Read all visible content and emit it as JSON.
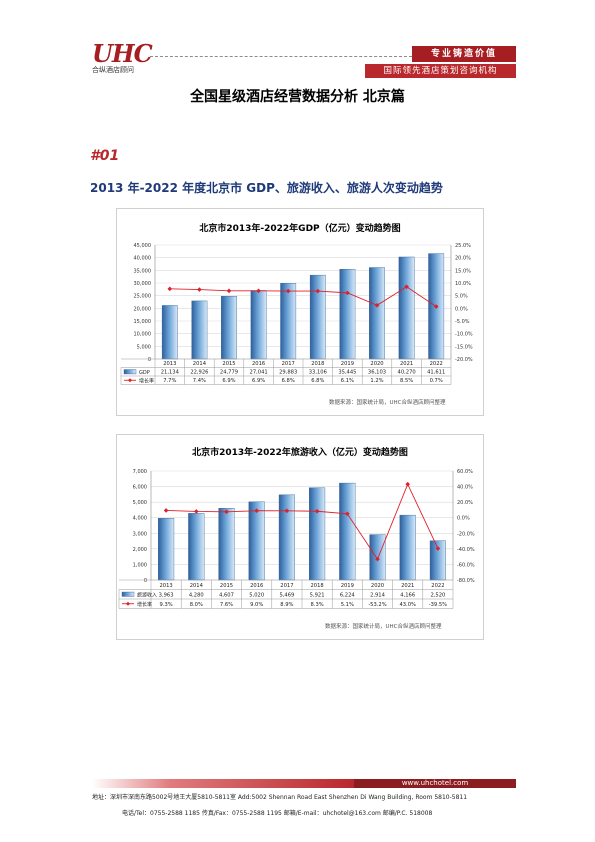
{
  "header": {
    "logo_text": "UHC",
    "logo_sub": "合纵酒店顾问",
    "slogan": "专业铸造价值",
    "tagline": "国际领先酒店策划咨询机构"
  },
  "doc_title": "全国星级酒店经营数据分析 北京篇",
  "section": {
    "number": "#01",
    "title": "2013 年-2022 年度北京市 GDP、旅游收入、旅游人次变动趋势"
  },
  "chart_data": [
    {
      "type": "bar",
      "title": "北京市2013年-2022年GDP（亿元）变动趋势图",
      "categories": [
        "2013",
        "2014",
        "2015",
        "2016",
        "2017",
        "2018",
        "2019",
        "2020",
        "2021",
        "2022"
      ],
      "series": [
        {
          "name": "GDP",
          "kind": "bar",
          "axis": "left",
          "values": [
            21134,
            22926,
            24779,
            27041,
            29883,
            33106,
            35445,
            36103,
            40270,
            41611
          ],
          "labels": [
            "21,134",
            "22,926",
            "24,779",
            "27,041",
            "29,883",
            "33,106",
            "35,445",
            "36,103",
            "40,270",
            "41,611"
          ]
        },
        {
          "name": "增长率",
          "kind": "line",
          "axis": "right",
          "values": [
            7.7,
            7.4,
            6.9,
            6.9,
            6.8,
            6.8,
            6.1,
            1.2,
            8.5,
            0.7
          ],
          "labels": [
            "7.7%",
            "7.4%",
            "6.9%",
            "6.9%",
            "6.8%",
            "6.8%",
            "6.1%",
            "1.2%",
            "8.5%",
            "0.7%"
          ]
        }
      ],
      "ylim": [
        0,
        45000
      ],
      "yticks": [
        "0",
        "5,000",
        "10,000",
        "15,000",
        "20,000",
        "25,000",
        "30,000",
        "35,000",
        "40,000",
        "45,000"
      ],
      "y2lim": [
        -20,
        25
      ],
      "y2ticks": [
        "-20.0%",
        "-15.0%",
        "-10.0%",
        "-5.0%",
        "0.0%",
        "5.0%",
        "10.0%",
        "15.0%",
        "20.0%",
        "25.0%"
      ],
      "source": "数据来源：国家统计局，UHC合纵酒店顾问整理",
      "colors": {
        "bar": "#6aa3d8",
        "line": "#e0202a"
      }
    },
    {
      "type": "bar",
      "title": "北京市2013年-2022年旅游收入（亿元）变动趋势图",
      "categories": [
        "2013",
        "2014",
        "2015",
        "2016",
        "2017",
        "2018",
        "2019",
        "2020",
        "2021",
        "2022"
      ],
      "series": [
        {
          "name": "旅游收入",
          "kind": "bar",
          "axis": "left",
          "values": [
            3963,
            4280,
            4607,
            5020,
            5469,
            5921,
            6224,
            2914,
            4166,
            2520
          ],
          "labels": [
            "3,963",
            "4,280",
            "4,607",
            "5,020",
            "5,469",
            "5,921",
            "6,224",
            "2,914",
            "4,166",
            "2,520"
          ]
        },
        {
          "name": "增长率",
          "kind": "line",
          "axis": "right",
          "values": [
            9.3,
            8.0,
            7.6,
            9.0,
            8.9,
            8.3,
            5.1,
            -53.2,
            43.0,
            -39.5
          ],
          "labels": [
            "9.3%",
            "8.0%",
            "7.6%",
            "9.0%",
            "8.9%",
            "8.3%",
            "5.1%",
            "-53.2%",
            "43.0%",
            "-39.5%"
          ]
        }
      ],
      "ylim": [
        0,
        7000
      ],
      "yticks": [
        "0",
        "1,000",
        "2,000",
        "3,000",
        "4,000",
        "5,000",
        "6,000",
        "7,000"
      ],
      "y2lim": [
        -80,
        60
      ],
      "y2ticks": [
        "-80.0%",
        "-60.0%",
        "-40.0%",
        "-20.0%",
        "0.0%",
        "20.0%",
        "40.0%",
        "60.0%"
      ],
      "source": "数据来源：国家统计局，UHC合纵酒店顾问整理",
      "colors": {
        "bar": "#6aa3d8",
        "line": "#e0202a"
      }
    }
  ],
  "footer": {
    "website": "www.uhchotel.com",
    "address": "地址：深圳市深南东路5002号地王大厦5810-5811室   Add:5002 Shennan Road East Shenzhen Di Wang Building, Room 5810-5811",
    "contact": "电话/Tel：0755-2588 1185    传真/Fax：0755-2588 1195    邮箱/E-mail：uhchotel@163.com    邮编/P.C. 518008"
  }
}
